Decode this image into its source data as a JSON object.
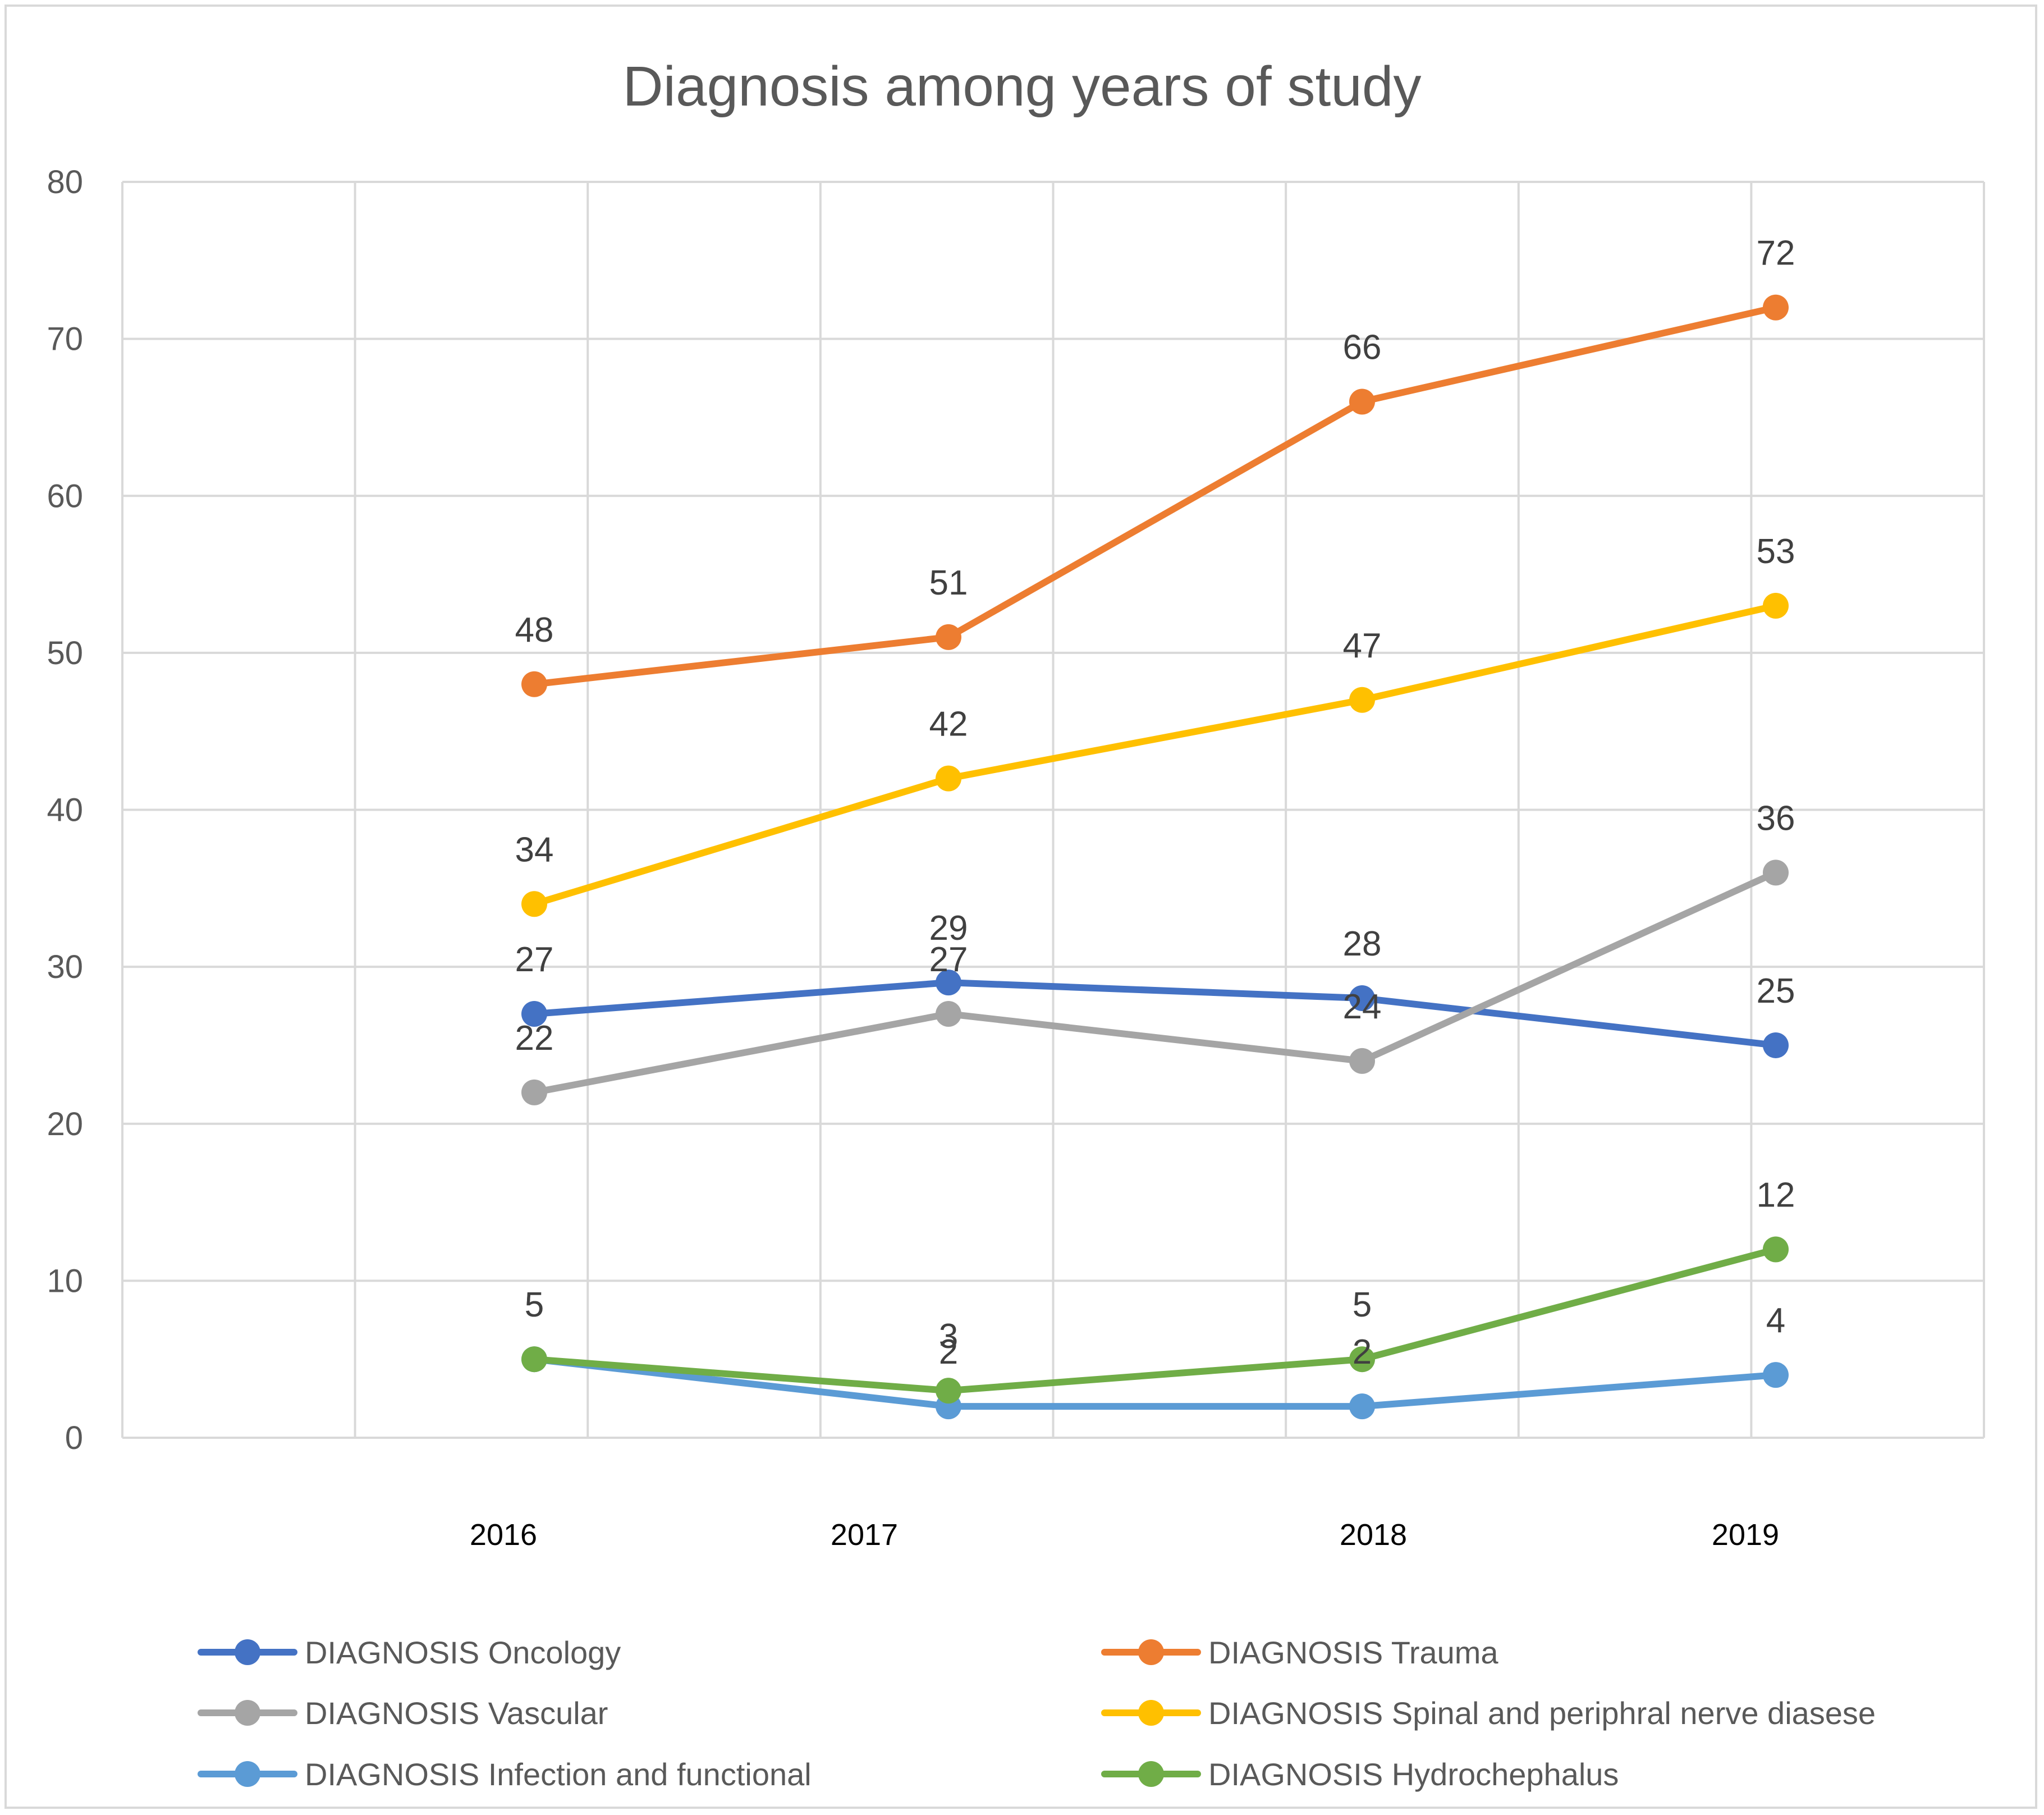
{
  "chart_data": {
    "type": "line",
    "title": "Diagnosis among years of study",
    "categories": [
      "2016",
      "2017",
      "2018",
      "2019"
    ],
    "xlabel": "",
    "ylabel": "",
    "ylim": [
      0,
      80
    ],
    "yticks": [
      0,
      10,
      20,
      30,
      40,
      50,
      60,
      70,
      80
    ],
    "grid": true,
    "legend_position": "bottom",
    "series": [
      {
        "name": "DIAGNOSIS Oncology",
        "color": "#4472C4",
        "values": [
          27,
          29,
          28,
          25
        ]
      },
      {
        "name": "DIAGNOSIS Trauma",
        "color": "#ED7D31",
        "values": [
          48,
          51,
          66,
          72
        ]
      },
      {
        "name": "DIAGNOSIS Vascular",
        "color": "#A5A5A5",
        "values": [
          22,
          27,
          24,
          36
        ]
      },
      {
        "name": "DIAGNOSIS Spinal and periphral nerve diasese",
        "color": "#FFC000",
        "values": [
          34,
          42,
          47,
          53
        ]
      },
      {
        "name": "DIAGNOSIS Infection and functional",
        "color": "#5B9BD5",
        "values": [
          5,
          2,
          2,
          4
        ]
      },
      {
        "name": "DIAGNOSIS Hydrochephalus",
        "color": "#70AD47",
        "values": [
          5,
          3,
          5,
          12
        ]
      }
    ]
  }
}
